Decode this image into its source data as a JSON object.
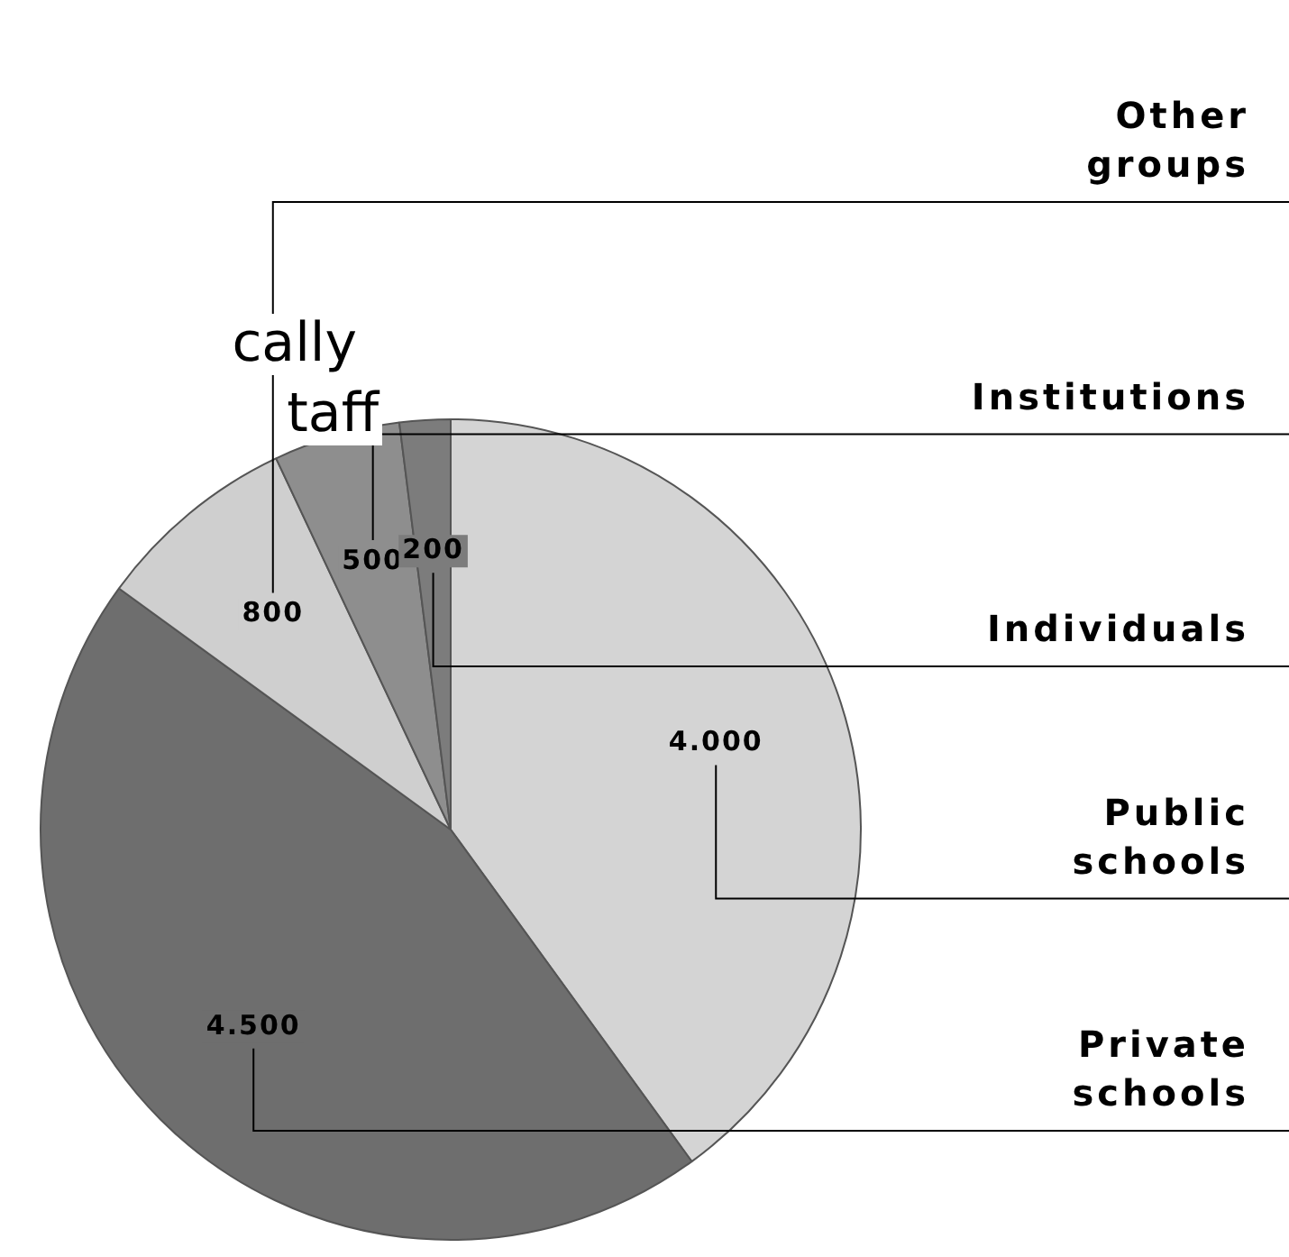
{
  "chart_data": {
    "type": "pie",
    "title": "cally\ntaff",
    "categories": [
      "Public schools",
      "Private schools",
      "Other groups",
      "Institutions",
      "Individuals"
    ],
    "values": [
      4000,
      4500,
      800,
      500,
      200
    ],
    "colors": [
      "#d4d4d4",
      "#6e6e6e",
      "#cfcfcf",
      "#8e8e8e",
      "#7c7c7c"
    ],
    "value_labels": [
      "4.000",
      "4.500",
      "800",
      "500",
      "200"
    ],
    "legend": false
  }
}
